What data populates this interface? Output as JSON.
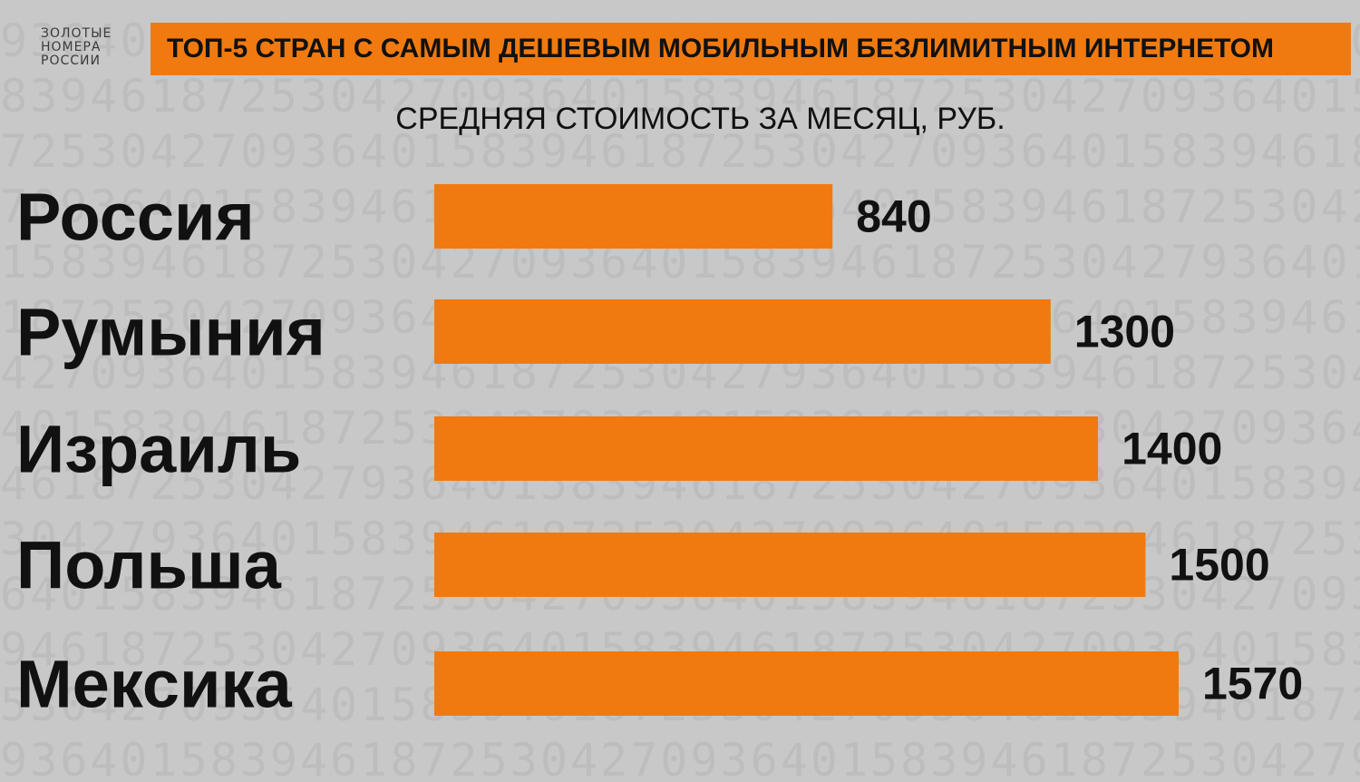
{
  "logo": {
    "lines": [
      "ЗОЛОТЫЕ",
      "НОМЕРА",
      "РОССИИ"
    ]
  },
  "header": {
    "title": "ТОП-5 СТРАН С САМЫМ ДЕШЕВЫМ МОБИЛЬНЫМ БЕЗЛИМИТНЫМ ИНТЕРНЕТОМ"
  },
  "colors": {
    "accent": "#f07a10",
    "background": "#c8c8c8",
    "text": "#111111"
  },
  "chart_data": {
    "type": "bar",
    "orientation": "horizontal",
    "title": "ТОП-5 СТРАН С САМЫМ ДЕШЕВЫМ МОБИЛЬНЫМ БЕЗЛИМИТНЫМ ИНТЕРНЕТОМ",
    "subtitle": "СРЕДНЯЯ СТОИМОСТЬ ЗА МЕСЯЦ, РУБ.",
    "categories": [
      "Россия",
      "Румыния",
      "Израиль",
      "Польша",
      "Мексика"
    ],
    "values": [
      840,
      1300,
      1400,
      1500,
      1570
    ],
    "data_labels": [
      "840",
      "1300",
      "1400",
      "1500",
      "1570"
    ],
    "xlim": [
      0,
      1570
    ],
    "grid": false,
    "legend": "none"
  }
}
